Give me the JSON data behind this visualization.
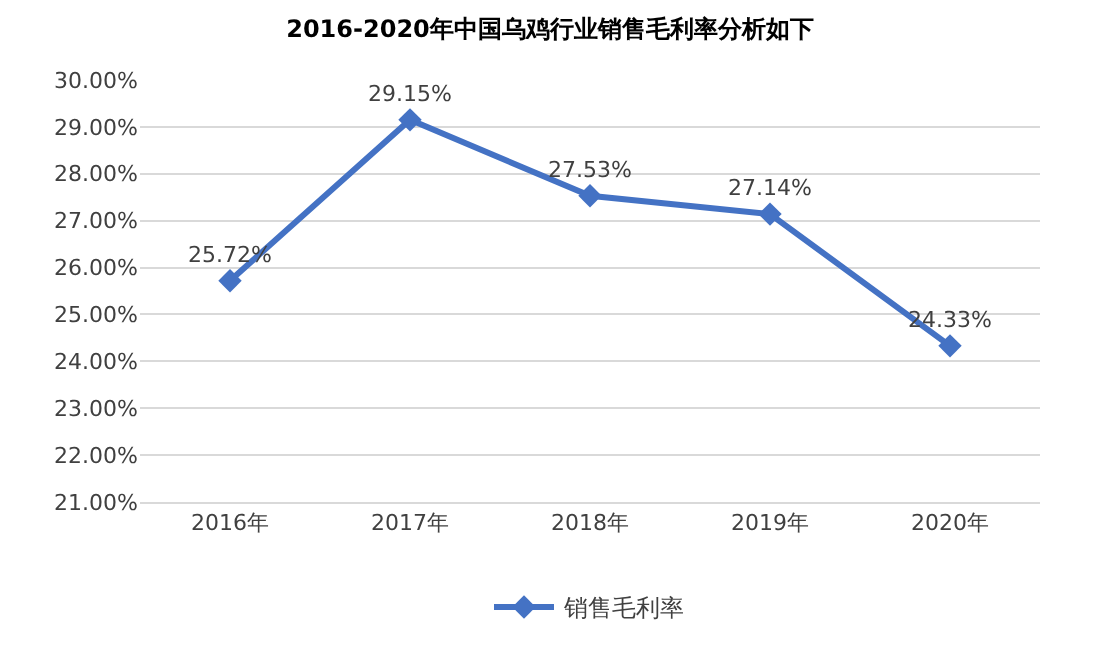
{
  "chart_data": {
    "type": "line",
    "title": "2016-2020年中国乌鸡行业销售毛利率分析如下",
    "categories": [
      "2016年",
      "2017年",
      "2018年",
      "2019年",
      "2020年"
    ],
    "series": [
      {
        "name": "销售毛利率",
        "color": "#4472c4",
        "values": [
          25.72,
          29.15,
          27.53,
          27.14,
          24.33
        ],
        "value_labels": [
          "25.72%",
          "29.15%",
          "27.53%",
          "27.14%",
          "24.33%"
        ]
      }
    ],
    "ylim": [
      21,
      30
    ],
    "yticks": [
      {
        "value": 21,
        "label": "21.00%"
      },
      {
        "value": 22,
        "label": "22.00%"
      },
      {
        "value": 23,
        "label": "23.00%"
      },
      {
        "value": 24,
        "label": "24.00%"
      },
      {
        "value": 25,
        "label": "25.00%"
      },
      {
        "value": 26,
        "label": "26.00%"
      },
      {
        "value": 27,
        "label": "27.00%"
      },
      {
        "value": 28,
        "label": "28.00%"
      },
      {
        "value": 29,
        "label": "29.00%"
      },
      {
        "value": 30,
        "label": "30.00%"
      }
    ],
    "grid": "y",
    "legend": "bottom",
    "marker": "diamond",
    "line_style": "solid"
  }
}
